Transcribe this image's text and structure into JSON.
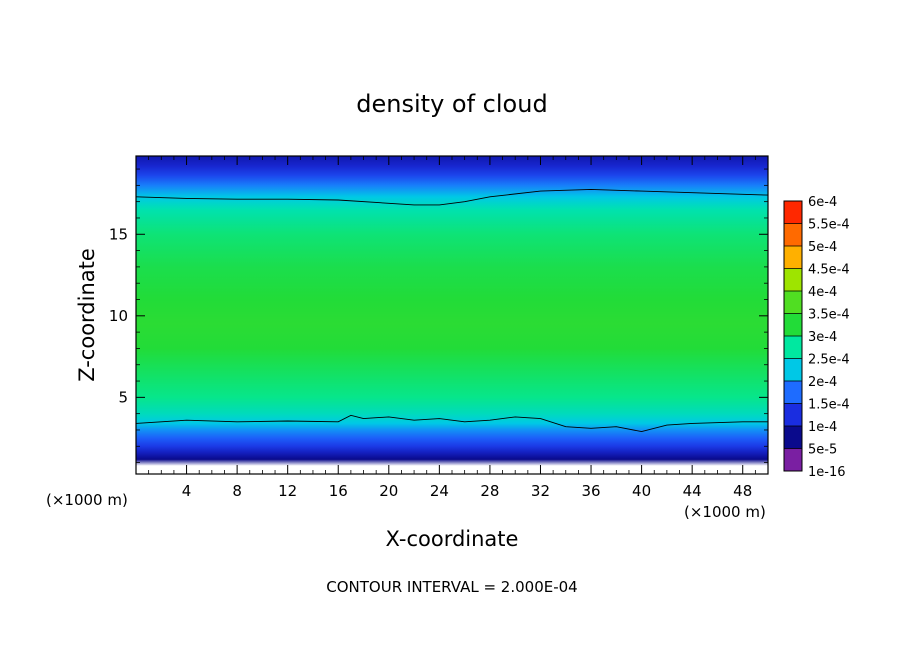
{
  "chart_data": {
    "type": "heatmap",
    "title": "density of cloud",
    "xlabel": "X-coordinate",
    "ylabel": "Z-coordinate",
    "x_unit": "(×1000 m)",
    "x_unit_right": "(×1000 m)",
    "xlim": [
      0,
      50
    ],
    "ylim": [
      0.3,
      19.8
    ],
    "xticks": [
      "4",
      "8",
      "12",
      "16",
      "20",
      "24",
      "28",
      "32",
      "36",
      "40",
      "44",
      "48"
    ],
    "yticks": [
      "5",
      "10",
      "15"
    ],
    "colorbar_labels": [
      "1e-16",
      "5e-5",
      "1e-4",
      "1.5e-4",
      "2e-4",
      "2.5e-4",
      "3e-4",
      "3.5e-4",
      "4e-4",
      "4.5e-4",
      "5e-4",
      "5.5e-4",
      "6e-4"
    ],
    "colorbar_colors": [
      "#7a1fa2",
      "#0a0a8c",
      "#1a2de0",
      "#1e6cff",
      "#00c8e6",
      "#00e8a0",
      "#22dc38",
      "#50de22",
      "#9ee400",
      "#ffb000",
      "#ff6a00",
      "#ff2800",
      "#ff9e9e"
    ],
    "contour_interval": "CONTOUR INTERVAL = 2.000E-04",
    "profile_z": [
      0.3,
      0.8,
      1.2,
      1.6,
      2.0,
      2.5,
      3.0,
      3.4,
      4.0,
      5.0,
      6.5,
      8.0,
      9.5,
      11.0,
      13.0,
      15.0,
      16.5,
      17.3,
      18.0,
      18.6,
      19.2,
      19.8
    ],
    "profile_density": [
      0,
      0.0,
      5e-05,
      8e-05,
      0.00011,
      0.00014,
      0.00017,
      0.0002,
      0.00023,
      0.00026,
      0.00028,
      0.0003,
      0.00031,
      0.0003,
      0.00029,
      0.00027,
      0.00024,
      0.0002,
      0.00016,
      0.00012,
      9e-05,
      7e-05
    ],
    "contour_upper": {
      "x": [
        0,
        4,
        8,
        12,
        16,
        20,
        22,
        24,
        26,
        28,
        32,
        36,
        40,
        44,
        48,
        50
      ],
      "z": [
        17.3,
        17.2,
        17.15,
        17.15,
        17.1,
        16.9,
        16.8,
        16.8,
        17.0,
        17.3,
        17.65,
        17.75,
        17.65,
        17.55,
        17.45,
        17.4
      ]
    },
    "contour_lower": {
      "x": [
        0,
        4,
        8,
        12,
        16,
        17,
        18,
        20,
        22,
        24,
        26,
        28,
        30,
        32,
        34,
        36,
        38,
        40,
        42,
        44,
        48,
        50
      ],
      "z": [
        3.4,
        3.6,
        3.5,
        3.55,
        3.5,
        3.9,
        3.7,
        3.8,
        3.6,
        3.7,
        3.5,
        3.6,
        3.8,
        3.7,
        3.2,
        3.1,
        3.2,
        2.9,
        3.3,
        3.4,
        3.5,
        3.5
      ]
    },
    "grid": false
  }
}
